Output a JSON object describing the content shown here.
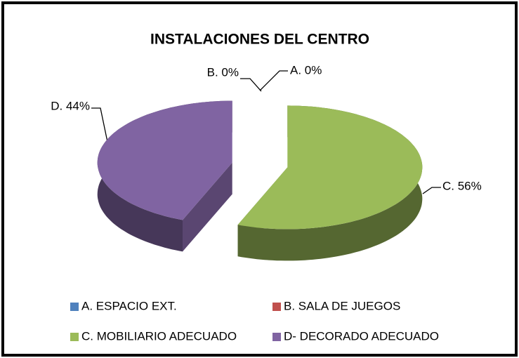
{
  "chart_data": {
    "type": "pie",
    "title": "INSTALACIONES DEL CENTRO",
    "categories": [
      "A. ESPACIO EXT.",
      "B. SALA DE JUEGOS",
      "C. MOBILIARIO ADECUADO",
      "D- DECORADO ADECUADO"
    ],
    "values": [
      0,
      0,
      56,
      44
    ],
    "value_labels": [
      "A. 0%",
      "B. 0%",
      "C. 56%",
      "D. 44%"
    ],
    "colors": [
      "#4f81bd",
      "#c0504d",
      "#9bbb59",
      "#8064a2"
    ],
    "legend": "bottom"
  }
}
